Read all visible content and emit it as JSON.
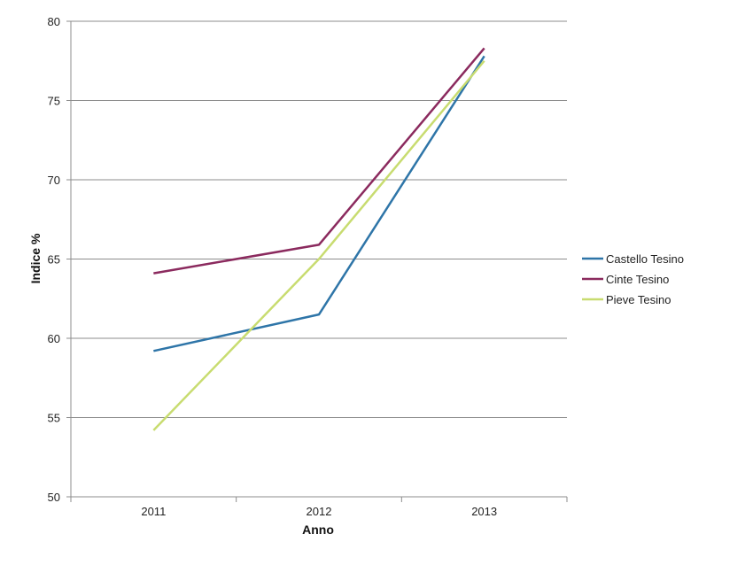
{
  "chart_data": {
    "type": "line",
    "categories": [
      "2011",
      "2012",
      "2013"
    ],
    "series": [
      {
        "name": "Castello Tesino",
        "values": [
          59.2,
          61.5,
          77.8
        ],
        "color": "#2e75a8"
      },
      {
        "name": "Cinte Tesino",
        "values": [
          64.1,
          65.9,
          78.3
        ],
        "color": "#8b2a5e"
      },
      {
        "name": "Pieve Tesino",
        "values": [
          54.2,
          65.0,
          77.5
        ],
        "color": "#c8dc70"
      }
    ],
    "xlabel": "Anno",
    "ylabel": "Indice %",
    "ylim": [
      50,
      80
    ],
    "yticks": [
      50,
      55,
      60,
      65,
      70,
      75,
      80
    ],
    "grid": true,
    "legend_position": "right"
  }
}
